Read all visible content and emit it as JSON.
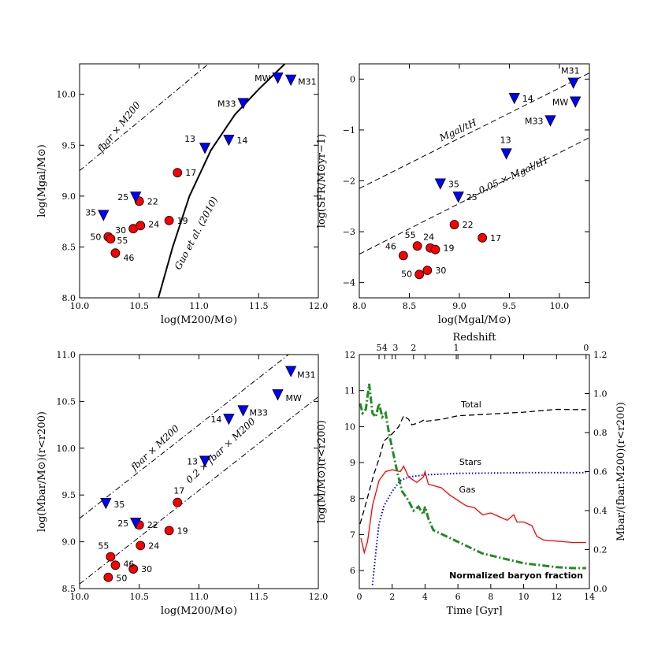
{
  "chart_data": [
    {
      "id": "p1",
      "type": "scatter",
      "xlabel": "log(M200/M⊙)",
      "ylabel": "log(Mgal/M⊙)",
      "xlim": [
        10.0,
        12.0
      ],
      "ylim": [
        8.0,
        10.3
      ],
      "xticks": [
        "10.0",
        "10.5",
        "11.0",
        "11.5",
        "12.0"
      ],
      "xtick_values": [
        10.0,
        10.5,
        11.0,
        11.5,
        12.0
      ],
      "yticks": [
        "8.0",
        "8.5",
        "9.0",
        "9.5",
        "10.0"
      ],
      "ytick_values": [
        8.0,
        8.5,
        9.0,
        9.5,
        10.0
      ],
      "series": [
        {
          "name": "circles",
          "marker": "circle",
          "color": "#ff0000",
          "points": [
            {
              "label": "50",
              "x": 10.24,
              "y": 8.6
            },
            {
              "label": "55",
              "x": 10.26,
              "y": 8.58
            },
            {
              "label": "46",
              "x": 10.3,
              "y": 8.44
            },
            {
              "label": "30",
              "x": 10.45,
              "y": 8.68
            },
            {
              "label": "24",
              "x": 10.51,
              "y": 8.71
            },
            {
              "label": "22",
              "x": 10.5,
              "y": 8.95
            },
            {
              "label": "19",
              "x": 10.75,
              "y": 8.76
            },
            {
              "label": "17",
              "x": 10.82,
              "y": 9.23
            }
          ]
        },
        {
          "name": "triangles",
          "marker": "triangle-down",
          "color": "#0000ff",
          "points": [
            {
              "label": "35",
              "x": 10.2,
              "y": 8.81
            },
            {
              "label": "25",
              "x": 10.47,
              "y": 8.99
            },
            {
              "label": "13",
              "x": 11.05,
              "y": 9.47
            },
            {
              "label": "14",
              "x": 11.25,
              "y": 9.55
            },
            {
              "label": "M33",
              "x": 11.37,
              "y": 9.91
            },
            {
              "label": "MW",
              "x": 11.66,
              "y": 10.16
            },
            {
              "label": "M31",
              "x": 11.77,
              "y": 10.14
            }
          ]
        }
      ],
      "lines": [
        {
          "name": "fbar x M200",
          "style": "dashdot",
          "points": [
            [
              10.0,
              9.25
            ],
            [
              11.08,
              10.3
            ]
          ]
        },
        {
          "name": "Guo et al. (2010)",
          "style": "solid",
          "width": 2,
          "points": [
            [
              10.66,
              8.0
            ],
            [
              10.78,
              8.5
            ],
            [
              10.92,
              9.0
            ],
            [
              11.1,
              9.45
            ],
            [
              11.3,
              9.8
            ],
            [
              11.5,
              10.05
            ],
            [
              11.72,
              10.3
            ]
          ]
        }
      ],
      "annotations": [
        {
          "text": "fbar × M200",
          "kind": "fbar1"
        },
        {
          "text": "Guo et al. (2010)",
          "kind": "guo"
        }
      ]
    },
    {
      "id": "p2",
      "type": "scatter",
      "xlabel": "log(Mgal/M⊙)",
      "ylabel": "log(SFR/M⊙yr−1)",
      "xlim": [
        8.0,
        10.3
      ],
      "ylim": [
        -4.3,
        0.3
      ],
      "xticks": [
        "8.0",
        "8.5",
        "9.0",
        "9.5",
        "10.0"
      ],
      "xtick_values": [
        8.0,
        8.5,
        9.0,
        9.5,
        10.0
      ],
      "yticks": [
        "−4",
        "−3",
        "−2",
        "−1",
        "0"
      ],
      "ytick_values": [
        -4,
        -3,
        -2,
        -1,
        0
      ],
      "series": [
        {
          "name": "circles",
          "marker": "circle",
          "color": "#ff0000",
          "points": [
            {
              "label": "46",
              "x": 8.44,
              "y": -3.47
            },
            {
              "label": "55",
              "x": 8.58,
              "y": -3.28
            },
            {
              "label": "24",
              "x": 8.71,
              "y": -3.32
            },
            {
              "label": "19",
              "x": 8.76,
              "y": -3.35
            },
            {
              "label": "50",
              "x": 8.6,
              "y": -3.84
            },
            {
              "label": "30",
              "x": 8.68,
              "y": -3.76
            },
            {
              "label": "22",
              "x": 8.95,
              "y": -2.86
            },
            {
              "label": "17",
              "x": 9.23,
              "y": -3.12
            }
          ]
        },
        {
          "name": "triangles",
          "marker": "triangle-down",
          "color": "#0000ff",
          "points": [
            {
              "label": "35",
              "x": 8.81,
              "y": -2.06
            },
            {
              "label": "25",
              "x": 8.99,
              "y": -2.32
            },
            {
              "label": "13",
              "x": 9.47,
              "y": -1.47
            },
            {
              "label": "14",
              "x": 9.55,
              "y": -0.38
            },
            {
              "label": "M33",
              "x": 9.91,
              "y": -0.82
            },
            {
              "label": "MW",
              "x": 10.16,
              "y": -0.45
            },
            {
              "label": "M31",
              "x": 10.14,
              "y": -0.08
            }
          ]
        }
      ],
      "lines": [
        {
          "name": "Mgal/tH",
          "style": "dashed",
          "points": [
            [
              8.0,
              -2.15
            ],
            [
              10.3,
              0.12
            ]
          ]
        },
        {
          "name": "0.05 x Mgal/tH",
          "style": "dashed",
          "points": [
            [
              8.0,
              -3.44
            ],
            [
              10.3,
              -1.15
            ]
          ]
        }
      ],
      "annotations": [
        {
          "text": "Mgal/tH",
          "kind": "sfr1"
        },
        {
          "text": "0.05 × Mgal/tH",
          "kind": "sfr2"
        }
      ]
    },
    {
      "id": "p3",
      "type": "scatter",
      "xlabel": "log(M200/M⊙)",
      "ylabel": "log(Mbar/M⊙)(r<r200)",
      "xlim": [
        10.0,
        12.0
      ],
      "ylim": [
        8.5,
        11.0
      ],
      "xticks": [
        "10.0",
        "10.5",
        "11.0",
        "11.5",
        "12.0"
      ],
      "xtick_values": [
        10.0,
        10.5,
        11.0,
        11.5,
        12.0
      ],
      "yticks": [
        "8.5",
        "9.0",
        "9.5",
        "10.0",
        "10.5",
        "11.0"
      ],
      "ytick_values": [
        8.5,
        9.0,
        9.5,
        10.0,
        10.5,
        11.0
      ],
      "series": [
        {
          "name": "circles",
          "marker": "circle",
          "color": "#ff0000",
          "points": [
            {
              "label": "55",
              "x": 10.26,
              "y": 8.84
            },
            {
              "label": "46",
              "x": 10.3,
              "y": 8.75
            },
            {
              "label": "50",
              "x": 10.24,
              "y": 8.62
            },
            {
              "label": "30",
              "x": 10.45,
              "y": 8.71
            },
            {
              "label": "24",
              "x": 10.51,
              "y": 8.96
            },
            {
              "label": "22",
              "x": 10.5,
              "y": 9.18
            },
            {
              "label": "19",
              "x": 10.75,
              "y": 9.12
            },
            {
              "label": "17",
              "x": 10.82,
              "y": 9.42
            }
          ]
        },
        {
          "name": "triangles",
          "marker": "triangle-down",
          "color": "#0000ff",
          "points": [
            {
              "label": "35",
              "x": 10.22,
              "y": 9.41
            },
            {
              "label": "25",
              "x": 10.47,
              "y": 9.2
            },
            {
              "label": "13",
              "x": 11.05,
              "y": 9.86
            },
            {
              "label": "14",
              "x": 11.25,
              "y": 10.31
            },
            {
              "label": "M33",
              "x": 11.37,
              "y": 10.4
            },
            {
              "label": "MW",
              "x": 11.66,
              "y": 10.57
            },
            {
              "label": "M31",
              "x": 11.77,
              "y": 10.82
            }
          ]
        }
      ],
      "lines": [
        {
          "name": "fbar x M200",
          "style": "dashdot",
          "points": [
            [
              10.0,
              9.25
            ],
            [
              11.75,
              11.0
            ]
          ]
        },
        {
          "name": "0.2 x fbar x M200",
          "style": "dashdot",
          "points": [
            [
              10.0,
              8.55
            ],
            [
              12.0,
              10.55
            ]
          ]
        }
      ],
      "annotations": [
        {
          "text": "fbar × M200",
          "kind": "fbar3"
        },
        {
          "text": "0.2 × fbar × M200",
          "kind": "fbar3b"
        }
      ]
    },
    {
      "id": "p4",
      "type": "line",
      "xlabel": "Time [Gyr]",
      "ylabel": "log(M/M⊙)(r<r200)",
      "ylabel_right": "Mbar/(fbar.M200)(r<r200)",
      "top_label": "Redshift",
      "xlim": [
        0,
        14
      ],
      "ylim": [
        5.5,
        12
      ],
      "ylim_right": [
        0,
        1.2
      ],
      "xticks": [
        "0",
        "2",
        "4",
        "6",
        "8",
        "10",
        "12",
        "14"
      ],
      "xtick_values": [
        0,
        2,
        4,
        6,
        8,
        10,
        12,
        14
      ],
      "yticks": [
        "6",
        "7",
        "8",
        "9",
        "10",
        "11",
        "12"
      ],
      "ytick_values": [
        6,
        7,
        8,
        9,
        10,
        11,
        12
      ],
      "yticks_right": [
        "0.0",
        "0.2",
        "0.4",
        "0.6",
        "0.8",
        "1.0",
        "1.2"
      ],
      "ytick_right_values": [
        0,
        0.2,
        0.4,
        0.6,
        0.8,
        1.0,
        1.2
      ],
      "top_ticks": [
        {
          "label": "5",
          "t": 1.2
        },
        {
          "label": "4",
          "t": 1.55
        },
        {
          "label": "3",
          "t": 2.2
        },
        {
          "label": "2",
          "t": 3.3
        },
        {
          "label": "1",
          "t": 5.9
        },
        {
          "label": "0",
          "t": 13.8
        }
      ],
      "series": [
        {
          "name": "Total",
          "color": "#000000",
          "style": "dashed",
          "axis": "left",
          "points": [
            [
              0.05,
              7.3
            ],
            [
              0.3,
              7.7
            ],
            [
              0.6,
              8.2
            ],
            [
              0.9,
              8.7
            ],
            [
              1.2,
              9.1
            ],
            [
              1.5,
              9.6
            ],
            [
              2.0,
              9.8
            ],
            [
              2.4,
              10.0
            ],
            [
              2.7,
              10.3
            ],
            [
              3.0,
              10.2
            ],
            [
              3.2,
              10.05
            ],
            [
              3.6,
              10.1
            ],
            [
              4.0,
              10.2
            ],
            [
              4.1,
              10.15
            ],
            [
              5.0,
              10.2
            ],
            [
              6.0,
              10.3
            ],
            [
              8.0,
              10.35
            ],
            [
              10.0,
              10.4
            ],
            [
              12.0,
              10.48
            ],
            [
              13.8,
              10.47
            ]
          ]
        },
        {
          "name": "Stars",
          "color": "#0000ff",
          "style": "dotted",
          "axis": "left",
          "points": [
            [
              0.8,
              5.6
            ],
            [
              1.0,
              6.5
            ],
            [
              1.2,
              7.3
            ],
            [
              1.5,
              7.8
            ],
            [
              2.0,
              8.2
            ],
            [
              2.5,
              8.5
            ],
            [
              3.0,
              8.6
            ],
            [
              4.0,
              8.66
            ],
            [
              6.0,
              8.7
            ],
            [
              10.0,
              8.72
            ],
            [
              13.8,
              8.72
            ]
          ]
        },
        {
          "name": "Gas",
          "color": "#ff0000",
          "style": "solid",
          "axis": "left",
          "points": [
            [
              0.1,
              6.9
            ],
            [
              0.3,
              6.5
            ],
            [
              0.5,
              6.8
            ],
            [
              0.8,
              7.8
            ],
            [
              1.2,
              8.5
            ],
            [
              1.6,
              8.75
            ],
            [
              2.0,
              8.8
            ],
            [
              2.5,
              8.75
            ],
            [
              2.7,
              8.9
            ],
            [
              3.0,
              8.6
            ],
            [
              3.5,
              8.45
            ],
            [
              3.9,
              8.6
            ],
            [
              4.0,
              8.75
            ],
            [
              4.2,
              8.4
            ],
            [
              5.0,
              8.3
            ],
            [
              5.5,
              8.1
            ],
            [
              6.0,
              7.95
            ],
            [
              6.5,
              7.8
            ],
            [
              7.0,
              7.75
            ],
            [
              7.5,
              7.55
            ],
            [
              8.0,
              7.6
            ],
            [
              8.5,
              7.5
            ],
            [
              9.0,
              7.4
            ],
            [
              9.4,
              7.55
            ],
            [
              9.6,
              7.35
            ],
            [
              10.0,
              7.35
            ],
            [
              10.5,
              7.25
            ],
            [
              10.8,
              6.95
            ],
            [
              11.2,
              6.85
            ],
            [
              12.0,
              6.82
            ],
            [
              12.5,
              6.8
            ],
            [
              13.0,
              6.78
            ],
            [
              13.8,
              6.78
            ]
          ]
        },
        {
          "name": "Normalized baryon fraction",
          "color": "#228b22",
          "style": "dashdot",
          "axis": "right",
          "points": [
            [
              0.05,
              0.95
            ],
            [
              0.2,
              0.9
            ],
            [
              0.4,
              0.92
            ],
            [
              0.6,
              1.05
            ],
            [
              0.8,
              0.9
            ],
            [
              1.0,
              0.88
            ],
            [
              1.2,
              0.95
            ],
            [
              1.4,
              0.88
            ],
            [
              1.6,
              0.9
            ],
            [
              1.8,
              0.8
            ],
            [
              2.0,
              0.72
            ],
            [
              2.3,
              0.6
            ],
            [
              2.6,
              0.5
            ],
            [
              3.0,
              0.45
            ],
            [
              3.3,
              0.4
            ],
            [
              3.6,
              0.42
            ],
            [
              3.9,
              0.38
            ],
            [
              4.0,
              0.42
            ],
            [
              4.2,
              0.36
            ],
            [
              4.5,
              0.3
            ],
            [
              5.0,
              0.28
            ],
            [
              6.0,
              0.24
            ],
            [
              7.0,
              0.2
            ],
            [
              7.5,
              0.18
            ],
            [
              8.0,
              0.17
            ],
            [
              9.0,
              0.15
            ],
            [
              10.0,
              0.13
            ],
            [
              11.0,
              0.12
            ],
            [
              12.0,
              0.11
            ],
            [
              13.0,
              0.105
            ],
            [
              13.8,
              0.105
            ]
          ]
        }
      ],
      "annotations": [
        {
          "text": "Total",
          "color": "#000000",
          "kind": "total"
        },
        {
          "text": "Stars",
          "color": "#0000ff",
          "kind": "stars"
        },
        {
          "text": "Gas",
          "color": "#ff0000",
          "kind": "gas"
        },
        {
          "text": "Normalized baryon fraction",
          "color": "#228b22",
          "kind": "nbf"
        }
      ]
    }
  ]
}
